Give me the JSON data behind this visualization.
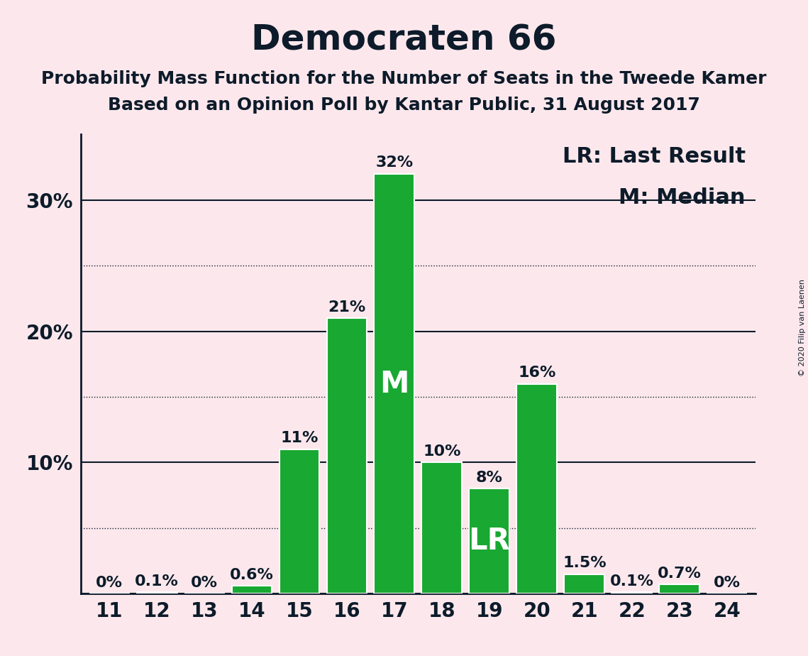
{
  "title": "Democraten 66",
  "subtitle1": "Probability Mass Function for the Number of Seats in the Tweede Kamer",
  "subtitle2": "Based on an Opinion Poll by Kantar Public, 31 August 2017",
  "copyright": "© 2020 Filip van Laenen",
  "seats": [
    11,
    12,
    13,
    14,
    15,
    16,
    17,
    18,
    19,
    20,
    21,
    22,
    23,
    24
  ],
  "values": [
    0.0,
    0.1,
    0.0,
    0.6,
    11.0,
    21.0,
    32.0,
    10.0,
    8.0,
    16.0,
    1.5,
    0.1,
    0.7,
    0.0
  ],
  "labels": [
    "0%",
    "0.1%",
    "0%",
    "0.6%",
    "11%",
    "21%",
    "32%",
    "10%",
    "8%",
    "16%",
    "1.5%",
    "0.1%",
    "0.7%",
    "0%"
  ],
  "bar_color": "#19A832",
  "background_color": "#fce8ec",
  "text_color": "#0d1b2a",
  "median_seat": 17,
  "last_result_seat": 19,
  "legend_lr": "LR: Last Result",
  "legend_m": "M: Median",
  "yticks": [
    10,
    20,
    30
  ],
  "ytick_labels": [
    "10%",
    "20%",
    "30%"
  ],
  "solid_yticks": [
    0,
    10,
    20,
    30
  ],
  "dotted_yticks": [
    5,
    15,
    25
  ],
  "ylim": [
    0,
    35
  ],
  "title_fontsize": 36,
  "subtitle_fontsize": 18,
  "bar_label_fontsize": 16,
  "axis_fontsize": 20,
  "legend_fontsize": 22,
  "marker_fontsize": 30
}
